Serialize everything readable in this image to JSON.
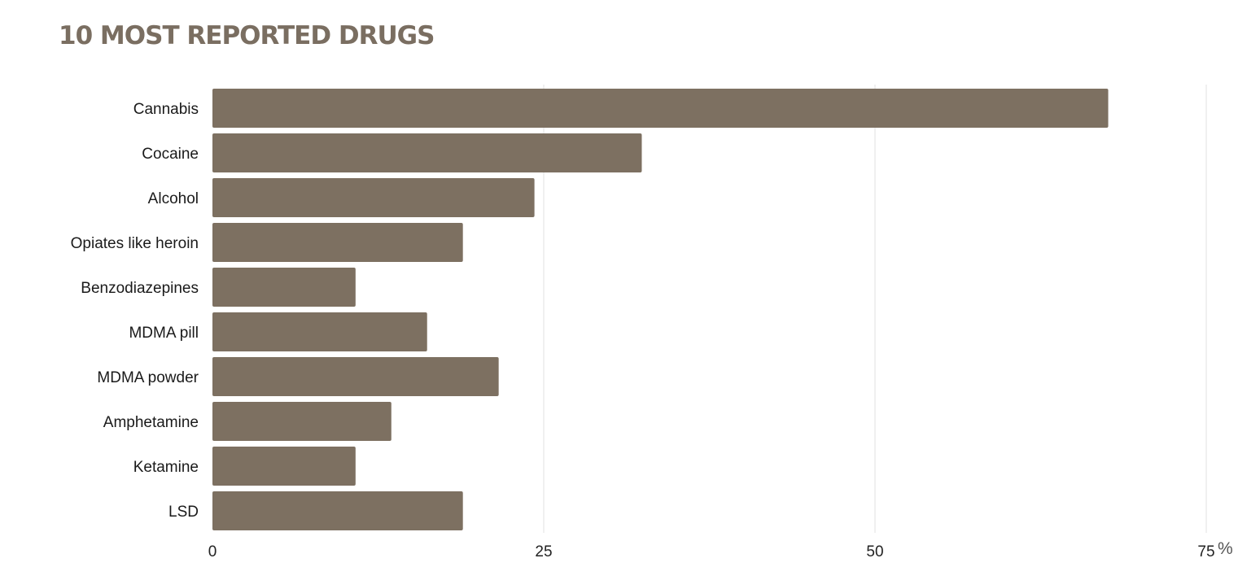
{
  "chart_data": {
    "type": "bar",
    "orientation": "horizontal",
    "title": "10 MOST REPORTED DRUGS",
    "categories": [
      "Cannabis",
      "Cocaine",
      "Alcohol",
      "Opiates like heroin",
      "Benzodiazepines",
      "MDMA pill",
      "MDMA powder",
      "Amphetamine",
      "Ketamine",
      "LSD"
    ],
    "values": [
      67.6,
      32.4,
      24.3,
      18.9,
      10.8,
      16.2,
      21.6,
      13.5,
      10.8,
      18.9
    ],
    "xlim": [
      0,
      75
    ],
    "xticks": [
      "0",
      "25",
      "50",
      "75"
    ],
    "xtick_values": [
      0,
      25,
      50,
      75
    ],
    "unit": "%",
    "grid": "vertical",
    "bar_color": "#7d7061"
  }
}
